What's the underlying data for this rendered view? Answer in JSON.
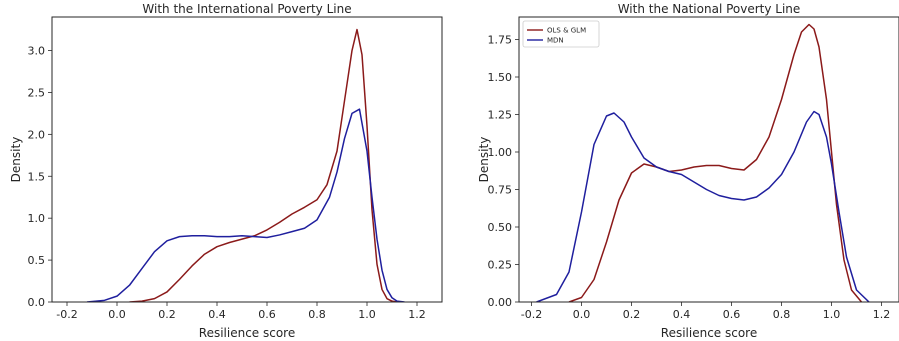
{
  "chart_data": [
    {
      "type": "line",
      "title": "With the International Poverty Line",
      "xlabel": "Resilience score",
      "ylabel": "Density",
      "xlim": [
        -0.26,
        1.3
      ],
      "ylim": [
        0,
        3.4
      ],
      "xticks": [
        "-0.2",
        "0.0",
        "0.2",
        "0.4",
        "0.6",
        "0.8",
        "1.0",
        "1.2"
      ],
      "xtick_values": [
        -0.2,
        0.0,
        0.2,
        0.4,
        0.6,
        0.8,
        1.0,
        1.2
      ],
      "yticks": [
        "0.0",
        "0.5",
        "1.0",
        "1.5",
        "2.0",
        "2.5",
        "3.0"
      ],
      "ytick_values": [
        0.0,
        0.5,
        1.0,
        1.5,
        2.0,
        2.5,
        3.0
      ],
      "grid": false,
      "legend": null,
      "series": [
        {
          "color": "#8b1a1a",
          "x": [
            0.05,
            0.1,
            0.15,
            0.2,
            0.25,
            0.3,
            0.35,
            0.4,
            0.45,
            0.5,
            0.55,
            0.6,
            0.65,
            0.7,
            0.75,
            0.8,
            0.84,
            0.88,
            0.91,
            0.94,
            0.96,
            0.98,
            1.0,
            1.02,
            1.04,
            1.06,
            1.08,
            1.1,
            1.12
          ],
          "y": [
            0.0,
            0.01,
            0.04,
            0.12,
            0.27,
            0.43,
            0.57,
            0.66,
            0.71,
            0.75,
            0.79,
            0.86,
            0.95,
            1.05,
            1.13,
            1.22,
            1.4,
            1.8,
            2.4,
            3.0,
            3.25,
            2.95,
            2.1,
            1.1,
            0.45,
            0.15,
            0.04,
            0.01,
            0.0
          ]
        },
        {
          "color": "#1f1f9e",
          "x": [
            -0.12,
            -0.05,
            0.0,
            0.05,
            0.1,
            0.15,
            0.2,
            0.25,
            0.3,
            0.35,
            0.4,
            0.45,
            0.5,
            0.55,
            0.6,
            0.65,
            0.7,
            0.75,
            0.8,
            0.85,
            0.88,
            0.91,
            0.94,
            0.97,
            1.0,
            1.02,
            1.04,
            1.06,
            1.08,
            1.1,
            1.12,
            1.15
          ],
          "y": [
            0.0,
            0.02,
            0.07,
            0.2,
            0.4,
            0.6,
            0.73,
            0.78,
            0.79,
            0.79,
            0.78,
            0.78,
            0.79,
            0.78,
            0.77,
            0.8,
            0.84,
            0.88,
            0.98,
            1.25,
            1.55,
            1.95,
            2.25,
            2.3,
            1.8,
            1.25,
            0.75,
            0.38,
            0.15,
            0.05,
            0.01,
            0.0
          ]
        }
      ]
    },
    {
      "type": "line",
      "title": "With the National Poverty Line",
      "xlabel": "Resilience score",
      "ylabel": "Density",
      "xlim": [
        -0.25,
        1.27
      ],
      "ylim": [
        0,
        1.9
      ],
      "xticks": [
        "-0.2",
        "0.0",
        "0.2",
        "0.4",
        "0.6",
        "0.8",
        "1.0",
        "1.2"
      ],
      "xtick_values": [
        -0.2,
        0.0,
        0.2,
        0.4,
        0.6,
        0.8,
        1.0,
        1.2
      ],
      "yticks": [
        "0.00",
        "0.25",
        "0.50",
        "0.75",
        "1.00",
        "1.25",
        "1.50",
        "1.75"
      ],
      "ytick_values": [
        0.0,
        0.25,
        0.5,
        0.75,
        1.0,
        1.25,
        1.5,
        1.75
      ],
      "grid": false,
      "legend": "top-left",
      "series": [
        {
          "name": "OLS & GLM",
          "color": "#8b1a1a",
          "x": [
            -0.05,
            0.0,
            0.05,
            0.1,
            0.15,
            0.2,
            0.25,
            0.3,
            0.35,
            0.4,
            0.45,
            0.5,
            0.55,
            0.6,
            0.65,
            0.7,
            0.75,
            0.8,
            0.85,
            0.88,
            0.91,
            0.93,
            0.95,
            0.98,
            1.0,
            1.02,
            1.05,
            1.08,
            1.12
          ],
          "y": [
            0.0,
            0.03,
            0.15,
            0.4,
            0.68,
            0.86,
            0.92,
            0.9,
            0.87,
            0.88,
            0.9,
            0.91,
            0.91,
            0.89,
            0.88,
            0.95,
            1.1,
            1.35,
            1.65,
            1.8,
            1.85,
            1.82,
            1.7,
            1.35,
            1.0,
            0.65,
            0.28,
            0.08,
            0.0
          ]
        },
        {
          "name": "MDN",
          "color": "#1f1f9e",
          "x": [
            -0.18,
            -0.1,
            -0.05,
            0.0,
            0.05,
            0.1,
            0.13,
            0.17,
            0.2,
            0.25,
            0.3,
            0.35,
            0.4,
            0.45,
            0.5,
            0.55,
            0.6,
            0.65,
            0.7,
            0.75,
            0.8,
            0.85,
            0.9,
            0.93,
            0.95,
            0.98,
            1.0,
            1.03,
            1.06,
            1.1,
            1.15
          ],
          "y": [
            0.0,
            0.05,
            0.2,
            0.6,
            1.05,
            1.24,
            1.26,
            1.2,
            1.1,
            0.96,
            0.9,
            0.87,
            0.85,
            0.8,
            0.75,
            0.71,
            0.69,
            0.68,
            0.7,
            0.76,
            0.85,
            1.0,
            1.2,
            1.27,
            1.25,
            1.1,
            0.92,
            0.6,
            0.3,
            0.08,
            0.0
          ]
        }
      ]
    }
  ]
}
